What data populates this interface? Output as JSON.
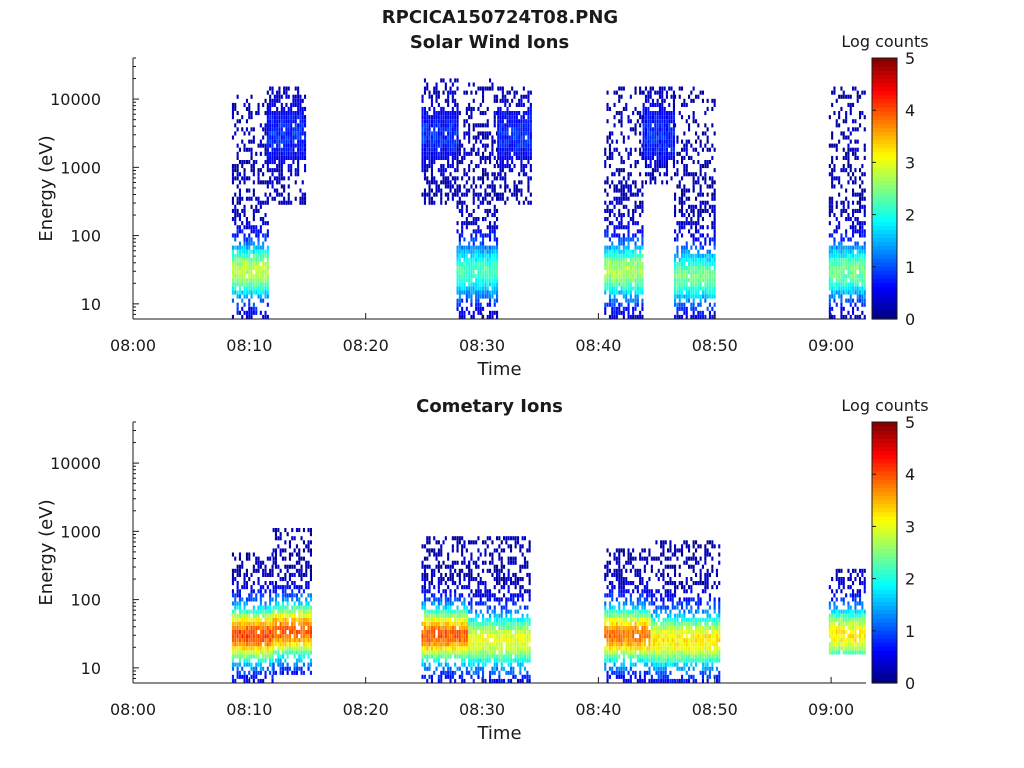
{
  "figure_title": "RPCICA150724T08.PNG",
  "colors": {
    "colormap": [
      "#00007f",
      "#0000ff",
      "#0080ff",
      "#00ffff",
      "#80ff80",
      "#ffff00",
      "#ff8000",
      "#ff0000",
      "#7f0000"
    ],
    "axis": "#1a1a1a",
    "background": "#ffffff"
  },
  "chart_data": [
    {
      "type": "heatmap",
      "title": "Solar Wind Ions",
      "xlabel": "Time",
      "ylabel": "Energy (eV)",
      "x_tick_labels": [
        "08:00",
        "08:10",
        "08:20",
        "08:30",
        "08:40",
        "08:50",
        "09:00"
      ],
      "y_tick_labels": [
        "10",
        "100",
        "1000",
        "10000"
      ],
      "xlim_minutes": [
        0,
        63
      ],
      "ylim_eV": [
        6,
        40000
      ],
      "y_scale": "log",
      "colorbar": {
        "label": "Log counts",
        "range": [
          0,
          5
        ],
        "ticks": [
          "0",
          "1",
          "2",
          "3",
          "4",
          "5"
        ]
      },
      "bursts": [
        {
          "start_min": 8.5,
          "end_min": 11.5,
          "emin_eV": 6,
          "emax_eV": 12000,
          "peak_eV": 30,
          "peak_log_counts": 2.6
        },
        {
          "start_min": 11.5,
          "end_min": 14.8,
          "emin_eV": 300,
          "emax_eV": 15000,
          "peak_eV": 3000,
          "peak_log_counts": 0.6
        },
        {
          "start_min": 24.8,
          "end_min": 27.8,
          "emin_eV": 300,
          "emax_eV": 20000,
          "peak_eV": 3000,
          "peak_log_counts": 0.6
        },
        {
          "start_min": 27.8,
          "end_min": 31.3,
          "emin_eV": 6,
          "emax_eV": 20000,
          "peak_eV": 30,
          "peak_log_counts": 2.0
        },
        {
          "start_min": 31.3,
          "end_min": 34.2,
          "emin_eV": 300,
          "emax_eV": 15000,
          "peak_eV": 3000,
          "peak_log_counts": 0.6
        },
        {
          "start_min": 40.5,
          "end_min": 43.8,
          "emin_eV": 6,
          "emax_eV": 15000,
          "peak_eV": 30,
          "peak_log_counts": 2.5
        },
        {
          "start_min": 43.8,
          "end_min": 46.5,
          "emin_eV": 600,
          "emax_eV": 15000,
          "peak_eV": 3000,
          "peak_log_counts": 0.6
        },
        {
          "start_min": 46.5,
          "end_min": 50.0,
          "emin_eV": 6,
          "emax_eV": 15000,
          "peak_eV": 25,
          "peak_log_counts": 2.2
        },
        {
          "start_min": 59.8,
          "end_min": 63.0,
          "emin_eV": 6,
          "emax_eV": 15000,
          "peak_eV": 30,
          "peak_log_counts": 2.2
        }
      ]
    },
    {
      "type": "heatmap",
      "title": "Cometary Ions",
      "xlabel": "Time",
      "ylabel": "Energy (eV)",
      "x_tick_labels": [
        "08:00",
        "08:10",
        "08:20",
        "08:30",
        "08:40",
        "08:50",
        "09:00"
      ],
      "y_tick_labels": [
        "10",
        "100",
        "1000",
        "10000"
      ],
      "xlim_minutes": [
        0,
        63
      ],
      "ylim_eV": [
        6,
        40000
      ],
      "y_scale": "log",
      "colorbar": {
        "label": "Log counts",
        "range": [
          0,
          5
        ],
        "ticks": [
          "0",
          "1",
          "2",
          "3",
          "4",
          "5"
        ]
      },
      "bursts": [
        {
          "start_min": 8.5,
          "end_min": 12.0,
          "emin_eV": 6,
          "emax_eV": 500,
          "peak_eV": 30,
          "peak_log_counts": 3.8
        },
        {
          "start_min": 12.0,
          "end_min": 15.2,
          "emin_eV": 8,
          "emax_eV": 1100,
          "peak_eV": 35,
          "peak_log_counts": 3.7
        },
        {
          "start_min": 24.8,
          "end_min": 28.8,
          "emin_eV": 6,
          "emax_eV": 900,
          "peak_eV": 30,
          "peak_log_counts": 3.7
        },
        {
          "start_min": 28.8,
          "end_min": 34.2,
          "emin_eV": 6,
          "emax_eV": 900,
          "peak_eV": 25,
          "peak_log_counts": 2.8
        },
        {
          "start_min": 40.5,
          "end_min": 44.5,
          "emin_eV": 6,
          "emax_eV": 600,
          "peak_eV": 30,
          "peak_log_counts": 3.6
        },
        {
          "start_min": 44.5,
          "end_min": 50.5,
          "emin_eV": 6,
          "emax_eV": 700,
          "peak_eV": 25,
          "peak_log_counts": 3.0
        },
        {
          "start_min": 59.8,
          "end_min": 63.0,
          "emin_eV": 15,
          "emax_eV": 300,
          "peak_eV": 30,
          "peak_log_counts": 3.0
        }
      ]
    }
  ]
}
